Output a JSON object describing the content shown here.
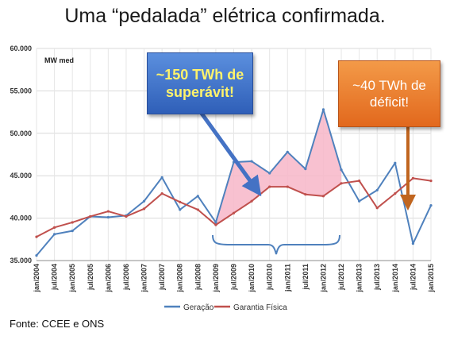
{
  "title": "Uma “pedalada” elétrica confirmada.",
  "source": "Fonte: CCEE e ONS",
  "callouts": {
    "surplus": "~150 TWh de superávit!",
    "deficit": "~40 TWh de déficit!"
  },
  "colors": {
    "geracao": "#4f81bd",
    "garantia": "#c0504d",
    "surplus_fill": "#f7b6c8",
    "brace": "#4f81bd",
    "surplus_arrow": "#4472c4",
    "deficit_arrow": "#c0651f"
  },
  "chart_data": {
    "type": "line",
    "ylabel": "MW med",
    "ylim": [
      35000,
      60000
    ],
    "yticks": [
      35000,
      40000,
      45000,
      50000,
      55000,
      60000
    ],
    "ytick_labels": [
      "35.000",
      "40.000",
      "45.000",
      "50.000",
      "55.000",
      "60.000"
    ],
    "xtick_labels": [
      "jan/2004",
      "jul/2004",
      "jan/2005",
      "jul/2005",
      "jan/2006",
      "jul/2006",
      "jan/2007",
      "jul/2007",
      "jan/2008",
      "jul/2008",
      "jan/2009",
      "jul/2009",
      "jan/2010",
      "jul/2010",
      "jan/2011",
      "jul/2011",
      "jan/2012",
      "jul/2012",
      "jan/2013",
      "jul/2013",
      "jan/2014",
      "jul/2014",
      "jan/2015"
    ],
    "grid": true,
    "legend_position": "bottom",
    "shaded_surplus_range": [
      "jan/2009",
      "jul/2012"
    ],
    "x": [
      "jan/2004",
      "jul/2004",
      "jan/2005",
      "jul/2005",
      "jan/2006",
      "jul/2006",
      "jan/2007",
      "jul/2007",
      "jan/2008",
      "jul/2008",
      "jan/2009",
      "jul/2009",
      "jan/2010",
      "jul/2010",
      "jan/2011",
      "jul/2011",
      "jan/2012",
      "jul/2012",
      "jan/2013",
      "jul/2013",
      "jan/2014",
      "jul/2014",
      "jan/2015"
    ],
    "series": [
      {
        "name": "Geração",
        "values": [
          35600,
          38100,
          38500,
          40200,
          40100,
          40300,
          42000,
          44800,
          41000,
          42600,
          39500,
          46600,
          46700,
          45300,
          47800,
          45800,
          52800,
          45700,
          42000,
          43300,
          46500,
          37000,
          41500
        ]
      },
      {
        "name": "Garantia Física",
        "values": [
          37800,
          38900,
          39500,
          40200,
          40800,
          40200,
          41100,
          42900,
          41900,
          41000,
          39200,
          40600,
          42000,
          43700,
          43700,
          42800,
          42600,
          44100,
          44400,
          41200,
          42900,
          44700,
          44400
        ]
      }
    ]
  }
}
